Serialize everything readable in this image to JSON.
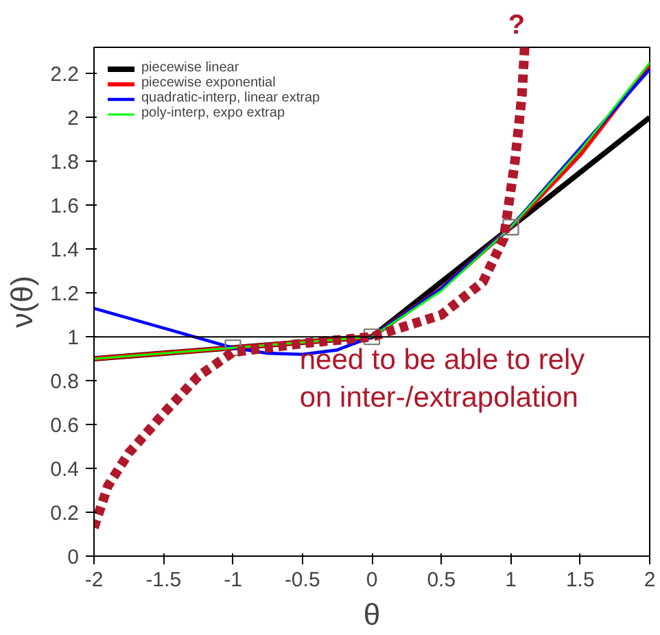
{
  "chart_data": {
    "type": "line",
    "xlabel": "θ",
    "ylabel": "ν(θ)",
    "xlim": [
      -2,
      2
    ],
    "ylim": [
      0,
      2.32
    ],
    "xticks": [
      -2,
      -1.5,
      -1,
      -0.5,
      0,
      0.5,
      1,
      1.5,
      2
    ],
    "yticks": [
      0,
      0.2,
      0.4,
      0.6,
      0.8,
      1,
      1.2,
      1.4,
      1.6,
      1.8,
      2,
      2.2
    ],
    "grid": false,
    "legend": "top left",
    "line_style": "solid",
    "ref_lines": [
      {
        "axis": "y",
        "value": 1,
        "color": "#000000"
      }
    ],
    "annotations": [
      "?",
      "need to be able to rely\non inter-/extrapolation"
    ],
    "series": [
      {
        "name": "piecewise linear",
        "color": "#000000",
        "x": [
          -2,
          -1,
          0,
          1,
          2
        ],
        "values": [
          0.9,
          0.95,
          1,
          1.5,
          2.0
        ]
      },
      {
        "name": "piecewise exponential",
        "color": "#ff0000",
        "x": [
          -2,
          -1.5,
          -1,
          -0.5,
          0,
          0.5,
          1,
          1.5,
          2
        ],
        "values": [
          0.9,
          0.925,
          0.95,
          0.975,
          1,
          1.22,
          1.5,
          1.83,
          2.24
        ]
      },
      {
        "name": "quadratic-interp, linear extrap",
        "color": "#0000ff",
        "x": [
          -2,
          -1.5,
          -1,
          -0.75,
          -0.5,
          -0.25,
          0,
          0.5,
          1,
          1.5,
          2
        ],
        "values": [
          1.13,
          1.04,
          0.95,
          0.925,
          0.92,
          0.94,
          1,
          1.22,
          1.5,
          1.86,
          2.22
        ]
      },
      {
        "name": "poly-interp, expo extrap",
        "color": "#00ff00",
        "x": [
          -2,
          -1.5,
          -1,
          -0.5,
          0,
          0.5,
          1,
          1.5,
          2
        ],
        "values": [
          0.9,
          0.925,
          0.95,
          0.975,
          1,
          1.21,
          1.5,
          1.85,
          2.25
        ]
      },
      {
        "type": "scatter",
        "marker": "square",
        "color": "#808080",
        "x": [
          -1,
          0,
          1
        ],
        "values": [
          0.95,
          1,
          1.5
        ]
      },
      {
        "color": "#b0182b",
        "line_style": "dashed",
        "x": [
          -2,
          -1.9,
          -1.75,
          -1.5,
          -1.25,
          -1,
          -0.5,
          0,
          0.5,
          0.8,
          0.95,
          1.03,
          1.08,
          1.1
        ],
        "values": [
          0.13,
          0.32,
          0.47,
          0.65,
          0.82,
          0.93,
          0.97,
          1.0,
          1.1,
          1.25,
          1.45,
          1.8,
          2.1,
          2.32
        ]
      }
    ]
  }
}
